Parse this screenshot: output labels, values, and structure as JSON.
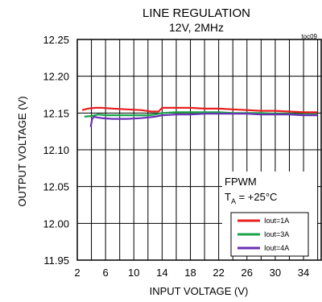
{
  "chart_data": {
    "type": "line",
    "title": "LINE REGULATION",
    "subtitle": "12V, 2MHz",
    "tag": "toc09",
    "xlabel": "INPUT VOLTAGE (V)",
    "ylabel": "OUTPUT VOLTAGE (V)",
    "xlim": [
      2,
      36.5
    ],
    "ylim": [
      11.95,
      12.25
    ],
    "xticks": [
      2,
      6,
      10,
      14,
      18,
      22,
      26,
      30,
      34
    ],
    "yticks": [
      11.95,
      12.0,
      12.05,
      12.1,
      12.15,
      12.2,
      12.25
    ],
    "grid": true,
    "legend_position": "bottom-right",
    "annotation_line1": "FPWM",
    "annotation_line2_prefix": "T",
    "annotation_line2_sub": "A",
    "annotation_line2_suffix": " = +25°C",
    "series": [
      {
        "name": "Iout=1A",
        "color": "#e8201f",
        "x": [
          2.7,
          3.5,
          4.5,
          5.5,
          7,
          9,
          11,
          12.5,
          13.5,
          14,
          16,
          18,
          20,
          22,
          24,
          26,
          28,
          30,
          32,
          34,
          36
        ],
        "y": [
          12.154,
          12.156,
          12.157,
          12.157,
          12.156,
          12.155,
          12.154,
          12.152,
          12.152,
          12.157,
          12.157,
          12.157,
          12.156,
          12.156,
          12.155,
          12.154,
          12.153,
          12.153,
          12.152,
          12.151,
          12.151
        ]
      },
      {
        "name": "Iout=3A",
        "color": "#1aa34a",
        "x": [
          3.0,
          4.0,
          5.0,
          6,
          8,
          10,
          12,
          13,
          14,
          16,
          18,
          20,
          22,
          24,
          26,
          28,
          30,
          32,
          34,
          36
        ],
        "y": [
          12.145,
          12.146,
          12.148,
          12.147,
          12.147,
          12.147,
          12.147,
          12.148,
          12.15,
          12.151,
          12.151,
          12.151,
          12.151,
          12.15,
          12.15,
          12.15,
          12.149,
          12.149,
          12.148,
          12.148
        ]
      },
      {
        "name": "Iout=4A",
        "color": "#6a2fb5",
        "x": [
          3.9,
          4.1,
          4.4,
          4.8,
          5.5,
          7,
          9,
          11,
          12,
          13,
          14,
          16,
          18,
          20,
          22,
          24,
          26,
          28,
          30,
          32,
          34,
          36
        ],
        "y": [
          12.131,
          12.142,
          12.145,
          12.144,
          12.143,
          12.142,
          12.142,
          12.143,
          12.144,
          12.145,
          12.147,
          12.148,
          12.148,
          12.149,
          12.149,
          12.149,
          12.149,
          12.148,
          12.148,
          12.148,
          12.147,
          12.147
        ]
      }
    ]
  }
}
